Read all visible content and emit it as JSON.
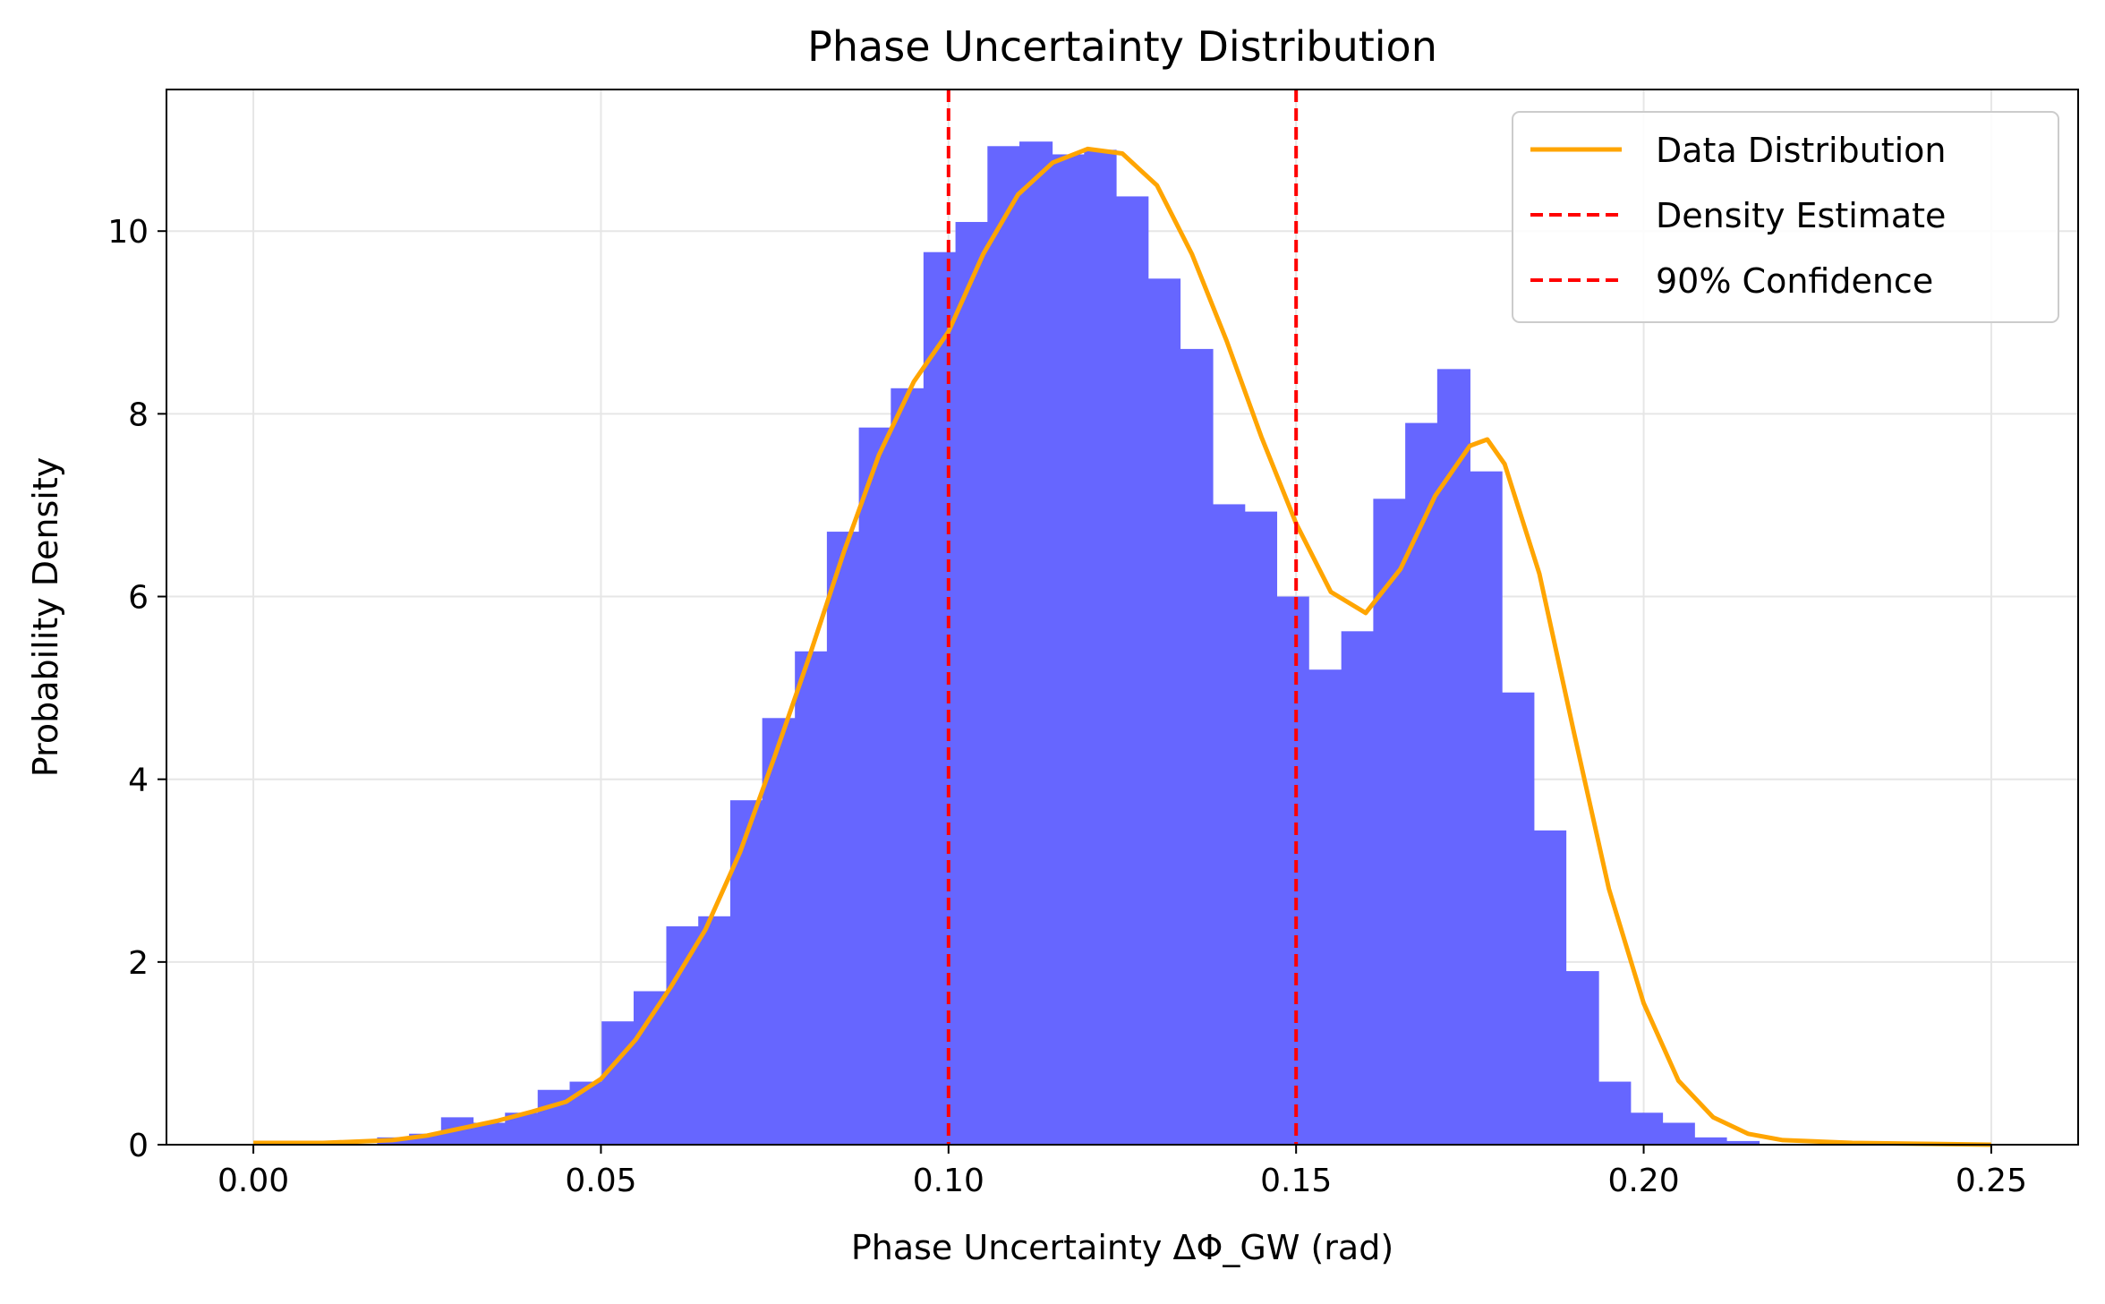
{
  "chart_data": {
    "type": "histogram",
    "title": "Phase Uncertainty Distribution",
    "xlabel": "Phase Uncertainty ΔΦ_GW (rad)",
    "ylabel": "Probability Density",
    "xlim": [
      -0.0125,
      0.2625
    ],
    "ylim": [
      0,
      11.55
    ],
    "x_ticks": [
      0.0,
      0.05,
      0.1,
      0.15,
      0.2,
      0.25
    ],
    "x_tick_labels": [
      "0.00",
      "0.05",
      "0.10",
      "0.15",
      "0.20",
      "0.25"
    ],
    "y_ticks": [
      0,
      2,
      4,
      6,
      8,
      10
    ],
    "y_tick_labels": [
      "0",
      "2",
      "4",
      "6",
      "8",
      "10"
    ],
    "grid": true,
    "legend_position": "top-right",
    "histogram": {
      "color": "#6666ff",
      "bin_edges": [
        0.0178,
        0.0224,
        0.027,
        0.0316,
        0.0362,
        0.0409,
        0.0455,
        0.0501,
        0.0547,
        0.0594,
        0.064,
        0.0686,
        0.0732,
        0.0779,
        0.0825,
        0.0871,
        0.0917,
        0.0964,
        0.101,
        0.1056,
        0.1102,
        0.1149,
        0.1195,
        0.1241,
        0.1287,
        0.1333,
        0.138,
        0.1426,
        0.1472,
        0.1518,
        0.1565,
        0.1611,
        0.1657,
        0.1703,
        0.175,
        0.1796,
        0.1842,
        0.1888,
        0.1935,
        0.1981,
        0.2027,
        0.2073,
        0.2119,
        0.2166
      ],
      "densities": [
        0.08,
        0.12,
        0.3,
        0.24,
        0.35,
        0.6,
        0.69,
        1.35,
        1.68,
        2.39,
        2.5,
        3.77,
        4.67,
        5.4,
        6.71,
        7.85,
        8.28,
        9.77,
        10.1,
        10.93,
        10.98,
        10.84,
        10.89,
        10.38,
        9.48,
        8.71,
        7.01,
        6.93,
        6.0,
        5.2,
        5.62,
        7.07,
        7.9,
        8.49,
        7.37,
        4.95,
        3.44,
        1.9,
        0.69,
        0.35,
        0.24,
        0.08,
        0.04
      ]
    },
    "series": [
      {
        "name": "Data Distribution",
        "type": "line",
        "color": "#ffa500",
        "x": [
          0.0,
          0.01,
          0.02,
          0.025,
          0.03,
          0.035,
          0.04,
          0.045,
          0.05,
          0.055,
          0.06,
          0.065,
          0.07,
          0.075,
          0.08,
          0.085,
          0.09,
          0.095,
          0.1,
          0.105,
          0.11,
          0.115,
          0.12,
          0.125,
          0.13,
          0.135,
          0.14,
          0.145,
          0.15,
          0.155,
          0.16,
          0.165,
          0.17,
          0.175,
          0.1775,
          0.18,
          0.185,
          0.19,
          0.195,
          0.2,
          0.205,
          0.21,
          0.215,
          0.22,
          0.23,
          0.24,
          0.25
        ],
        "y": [
          0.02,
          0.02,
          0.05,
          0.1,
          0.18,
          0.26,
          0.36,
          0.47,
          0.72,
          1.15,
          1.72,
          2.35,
          3.2,
          4.25,
          5.35,
          6.5,
          7.55,
          8.35,
          8.9,
          9.75,
          10.4,
          10.75,
          10.9,
          10.85,
          10.5,
          9.75,
          8.8,
          7.75,
          6.8,
          6.05,
          5.82,
          6.3,
          7.1,
          7.65,
          7.72,
          7.45,
          6.25,
          4.5,
          2.8,
          1.55,
          0.7,
          0.3,
          0.12,
          0.05,
          0.02,
          0.01,
          0.0
        ]
      },
      {
        "name": "Density Estimate",
        "type": "vline",
        "color": "#ff0000",
        "x": 0.1
      },
      {
        "name": "90% Confidence",
        "type": "vline",
        "color": "#ff0000",
        "x": 0.15
      }
    ]
  }
}
